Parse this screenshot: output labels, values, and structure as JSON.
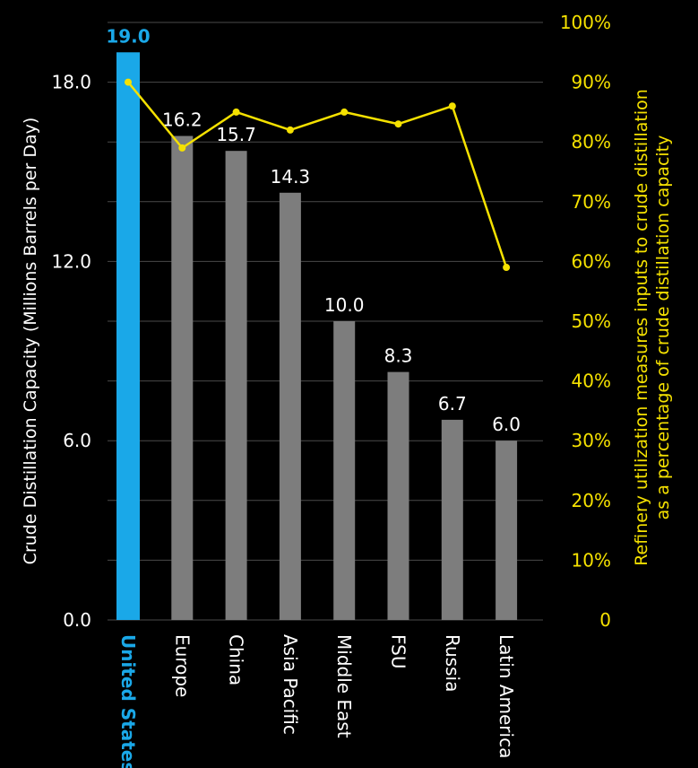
{
  "chart_data": {
    "type": "bar",
    "categories": [
      "United States",
      "Europe",
      "China",
      "Asia Pacific",
      "Middle East",
      "FSU",
      "Russia",
      "Latin America"
    ],
    "highlight_category": "United States",
    "series": [
      {
        "type": "bar",
        "axis": "left",
        "values": [
          19.0,
          16.2,
          15.7,
          14.3,
          10.0,
          8.3,
          6.7,
          6.0
        ],
        "data_labels": [
          "19.0",
          "16.2",
          "15.7",
          "14.3",
          "10.0",
          "8.3",
          "6.7",
          "6.0"
        ]
      },
      {
        "type": "line",
        "axis": "right",
        "values": [
          90,
          79,
          85,
          82,
          85,
          83,
          86,
          59
        ]
      }
    ],
    "ylabel": "Crude Distillation Capacity (Millions Barrels per Day)",
    "ylabel_right": [
      "Refinery utilization measures inputs to crude distillation",
      "as a percentage of crude distillation capacity"
    ],
    "ylim": [
      0,
      20
    ],
    "ylim_right": [
      0,
      100
    ],
    "yticks_left": [
      "0.0",
      "6.0",
      "12.0",
      "18.0"
    ],
    "yticks_left_values": [
      0,
      6,
      12,
      18
    ],
    "yticks_right": [
      "0",
      "10%",
      "20%",
      "30%",
      "40%",
      "50%",
      "60%",
      "70%",
      "80%",
      "90%",
      "100%"
    ],
    "yticks_right_values": [
      0,
      10,
      20,
      30,
      40,
      50,
      60,
      70,
      80,
      90,
      100
    ],
    "grid": true,
    "colors": {
      "background": "#000000",
      "bar": "#7d7d7d",
      "highlight_bar": "#1aa8e8",
      "line": "#f5e100",
      "grid": "#4a4a4a",
      "text": "#ffffff",
      "right_axis_text": "#f5e100"
    }
  }
}
